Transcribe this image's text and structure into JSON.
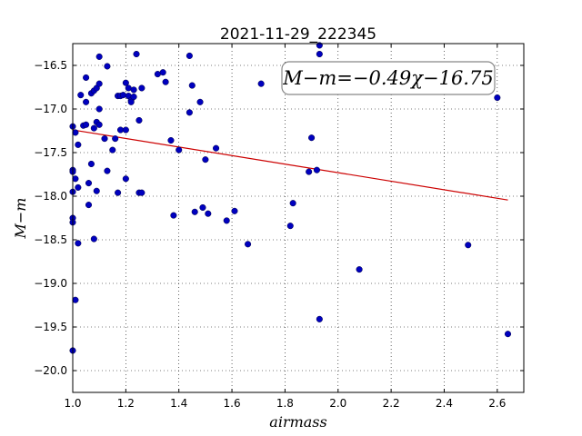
{
  "chart_data": {
    "type": "scatter",
    "title": "2021-11-29_222345",
    "xlabel": "airmass",
    "ylabel": "M−m",
    "xlim": [
      1.0,
      2.7
    ],
    "ylim": [
      -20.25,
      -16.25
    ],
    "inverted_y": true,
    "grid": true,
    "x_ticks": [
      1.0,
      1.2,
      1.4,
      1.6,
      1.8,
      2.0,
      2.2,
      2.4,
      2.6
    ],
    "x_tick_labels": [
      "1.0",
      "1.2",
      "1.4",
      "1.6",
      "1.8",
      "2.0",
      "2.2",
      "2.4",
      "2.6"
    ],
    "y_ticks": [
      -16.5,
      -17.0,
      -17.5,
      -18.0,
      -18.5,
      -19.0,
      -19.5,
      -20.0
    ],
    "y_tick_labels": [
      "−16.5",
      "−17.0",
      "−17.5",
      "−18.0",
      "−18.5",
      "−19.0",
      "−19.5",
      "−20.0"
    ],
    "annotation": "M−m=−0.49χ−16.75",
    "fit": {
      "slope": -0.49,
      "intercept": -16.75,
      "x_range": [
        1.0,
        2.64
      ],
      "color": "#cc0000"
    },
    "marker_color": "#0000bf",
    "points": [
      [
        1.0,
        -17.2
      ],
      [
        1.0,
        -17.7
      ],
      [
        1.0,
        -17.72
      ],
      [
        1.0,
        -17.95
      ],
      [
        1.0,
        -18.25
      ],
      [
        1.0,
        -18.3
      ],
      [
        1.0,
        -19.77
      ],
      [
        1.01,
        -17.27
      ],
      [
        1.01,
        -17.8
      ],
      [
        1.01,
        -19.19
      ],
      [
        1.02,
        -17.41
      ],
      [
        1.02,
        -17.9
      ],
      [
        1.02,
        -18.54
      ],
      [
        1.03,
        -16.84
      ],
      [
        1.04,
        -17.19
      ],
      [
        1.05,
        -16.64
      ],
      [
        1.05,
        -16.92
      ],
      [
        1.05,
        -17.18
      ],
      [
        1.06,
        -17.85
      ],
      [
        1.06,
        -18.1
      ],
      [
        1.07,
        -16.82
      ],
      [
        1.07,
        -17.63
      ],
      [
        1.08,
        -16.79
      ],
      [
        1.08,
        -17.22
      ],
      [
        1.08,
        -18.49
      ],
      [
        1.09,
        -16.76
      ],
      [
        1.09,
        -17.15
      ],
      [
        1.09,
        -17.94
      ],
      [
        1.1,
        -16.4
      ],
      [
        1.1,
        -16.71
      ],
      [
        1.1,
        -17.0
      ],
      [
        1.1,
        -17.18
      ],
      [
        1.12,
        -17.34
      ],
      [
        1.13,
        -16.51
      ],
      [
        1.13,
        -17.71
      ],
      [
        1.15,
        -17.47
      ],
      [
        1.16,
        -17.34
      ],
      [
        1.17,
        -17.96
      ],
      [
        1.17,
        -16.85
      ],
      [
        1.18,
        -16.85
      ],
      [
        1.18,
        -17.24
      ],
      [
        1.19,
        -16.84
      ],
      [
        1.2,
        -16.7
      ],
      [
        1.2,
        -17.24
      ],
      [
        1.2,
        -17.8
      ],
      [
        1.21,
        -16.76
      ],
      [
        1.21,
        -16.85
      ],
      [
        1.22,
        -16.9
      ],
      [
        1.22,
        -16.92
      ],
      [
        1.23,
        -16.86
      ],
      [
        1.23,
        -16.78
      ],
      [
        1.24,
        -16.37
      ],
      [
        1.25,
        -17.13
      ],
      [
        1.25,
        -17.96
      ],
      [
        1.26,
        -16.76
      ],
      [
        1.26,
        -17.96
      ],
      [
        1.32,
        -16.6
      ],
      [
        1.34,
        -16.58
      ],
      [
        1.35,
        -16.69
      ],
      [
        1.37,
        -17.36
      ],
      [
        1.38,
        -18.22
      ],
      [
        1.4,
        -17.47
      ],
      [
        1.44,
        -16.39
      ],
      [
        1.44,
        -17.04
      ],
      [
        1.45,
        -16.73
      ],
      [
        1.46,
        -18.18
      ],
      [
        1.48,
        -16.92
      ],
      [
        1.49,
        -18.13
      ],
      [
        1.5,
        -17.58
      ],
      [
        1.51,
        -18.2
      ],
      [
        1.54,
        -17.45
      ],
      [
        1.58,
        -18.28
      ],
      [
        1.61,
        -18.17
      ],
      [
        1.66,
        -18.55
      ],
      [
        1.71,
        -16.71
      ],
      [
        1.82,
        -18.34
      ],
      [
        1.83,
        -18.08
      ],
      [
        1.89,
        -17.72
      ],
      [
        1.9,
        -17.33
      ],
      [
        1.92,
        -17.7
      ],
      [
        1.93,
        -16.27
      ],
      [
        1.93,
        -16.37
      ],
      [
        1.93,
        -19.41
      ],
      [
        2.08,
        -18.84
      ],
      [
        2.49,
        -18.56
      ],
      [
        2.6,
        -16.87
      ],
      [
        2.64,
        -19.58
      ]
    ]
  }
}
